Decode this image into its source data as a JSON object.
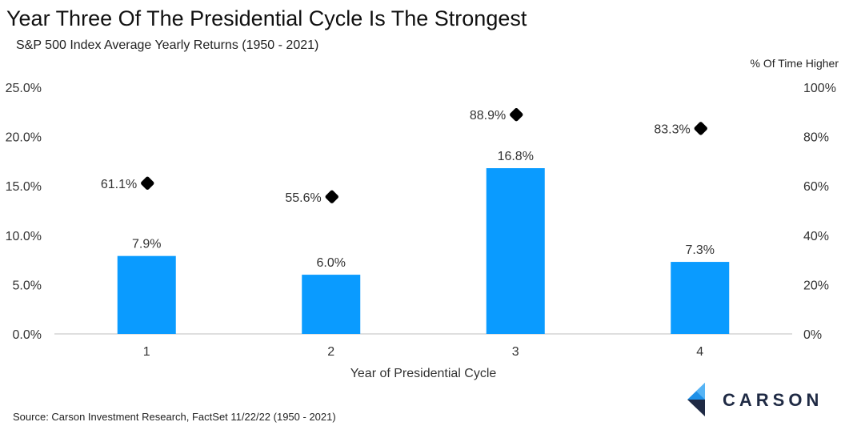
{
  "title": "Year Three Of The Presidential Cycle Is The Strongest",
  "subtitle": "S&P 500 Index Average Yearly Returns (1950 - 2021)",
  "source": "Source: Carson Investment Research, FactSet 11/22/22 (1950 - 2021)",
  "logo_text": "CARSON",
  "colors": {
    "bar": "#0a9bff",
    "marker": "#000000",
    "axis": "#bfbfbf"
  },
  "chart_data": {
    "type": "bar",
    "categories": [
      "1",
      "2",
      "3",
      "4"
    ],
    "xlabel": "Year of Presidential Cycle",
    "ylabel": "",
    "ylim": [
      0,
      25
    ],
    "y_ticks": [
      "0.0%",
      "5.0%",
      "10.0%",
      "15.0%",
      "20.0%",
      "25.0%"
    ],
    "y2label": "% Of Time Higher",
    "y2lim": [
      0,
      100
    ],
    "y2_ticks": [
      "0%",
      "20%",
      "40%",
      "60%",
      "80%",
      "100%"
    ],
    "series": [
      {
        "values": [
          7.9,
          6.0,
          16.8,
          7.3
        ],
        "labels": [
          "7.9%",
          "6.0%",
          "16.8%",
          "7.3%"
        ],
        "axis": "left",
        "kind": "bar"
      },
      {
        "values": [
          61.1,
          55.6,
          88.9,
          83.3
        ],
        "labels": [
          "61.1%",
          "55.6%",
          "88.9%",
          "83.3%"
        ],
        "axis": "right",
        "kind": "marker"
      }
    ]
  }
}
